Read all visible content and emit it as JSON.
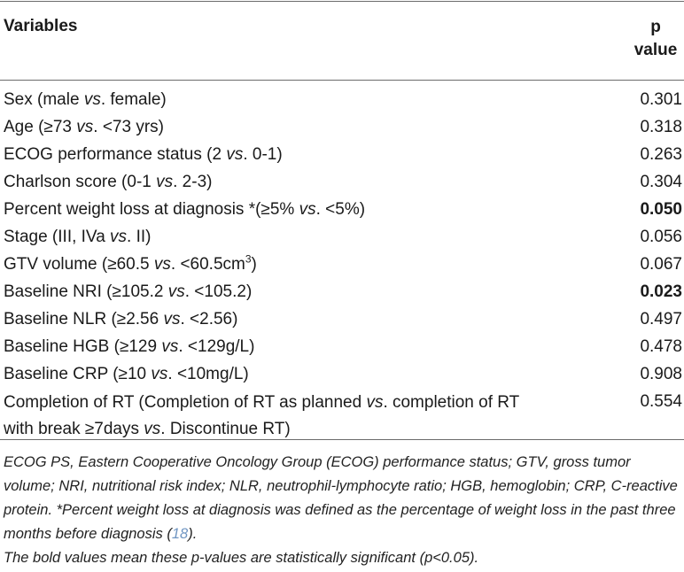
{
  "header": {
    "variables_label": "Variables",
    "p_label_line1": "p",
    "p_label_line2": "value"
  },
  "rows": [
    {
      "pre": "Sex (male ",
      "it": "vs",
      "post": ". female)",
      "p": "0.301",
      "bold": false
    },
    {
      "pre": "Age (≥73 ",
      "it": "vs",
      "post": ". <73 yrs)",
      "p": "0.318",
      "bold": false
    },
    {
      "pre": "ECOG performance status (2 ",
      "it": "vs",
      "post": ". 0-1)",
      "p": "0.263",
      "bold": false
    },
    {
      "pre": "Charlson score (0-1 ",
      "it": "vs",
      "post": ". 2-3)",
      "p": "0.304",
      "bold": false
    },
    {
      "pre": "Percent weight loss at diagnosis *(≥5% ",
      "it": "vs",
      "post": ". <5%)",
      "p": "0.050",
      "bold": true
    },
    {
      "pre": "Stage (III, IVa ",
      "it": "vs",
      "post": ". II)",
      "p": "0.056",
      "bold": false
    },
    {
      "pre": "GTV volume (≥60.5 ",
      "it": "vs",
      "post": ". <60.5cm",
      "sup": "3",
      "post2": ")",
      "p": "0.067",
      "bold": false
    },
    {
      "pre": "Baseline NRI (≥105.2 ",
      "it": "vs",
      "post": ". <105.2)",
      "p": "0.023",
      "bold": true
    },
    {
      "pre": "Baseline NLR (≥2.56 ",
      "it": "vs",
      "post": ". <2.56)",
      "p": "0.497",
      "bold": false
    },
    {
      "pre": "Baseline HGB (≥129 ",
      "it": "vs",
      "post": ". <129g/L)",
      "p": "0.478",
      "bold": false
    },
    {
      "pre": "Baseline CRP (≥10 ",
      "it": "vs",
      "post": ". <10mg/L)",
      "p": "0.908",
      "bold": false
    }
  ],
  "last_row": {
    "line1_pre": "Completion of RT (Completion of RT as planned ",
    "line1_it": "vs",
    "line1_post": ". completion of RT",
    "line2_pre": "with break ≥7days ",
    "line2_it": "vs",
    "line2_post": ". Discontinue RT)",
    "p": "0.554"
  },
  "footnote": {
    "text1": "ECOG PS, Eastern Cooperative Oncology Group (ECOG) performance status; GTV, gross tumor volume; NRI, nutritional risk index; NLR, neutrophil-lymphocyte ratio; HGB, hemoglobin; CRP, C-reactive protein. *Percent weight loss at diagnosis was defined as the percentage of weight loss in the past three months before diagnosis (",
    "cite": "18",
    "text1_end": ").",
    "text2": "The bold values mean these p-values are statistically significant (p<0.05)."
  },
  "colors": {
    "rule": "#6b6b6b",
    "citation": "#6f95c2"
  }
}
